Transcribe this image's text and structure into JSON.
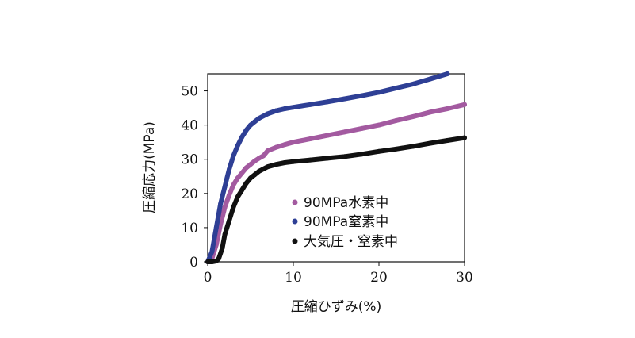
{
  "chart_data": {
    "type": "scatter",
    "xlabel": "圧縮ひずみ(%)",
    "ylabel": "圧縮応力(MPa)",
    "xlim": [
      0,
      30
    ],
    "ylim": [
      0,
      55
    ],
    "xticks": [
      "0",
      "10",
      "20",
      "30"
    ],
    "yticks": [
      "0",
      "10",
      "20",
      "30",
      "40",
      "50"
    ],
    "legend_position": "bottom-right-inside",
    "grid": false,
    "series": [
      {
        "name": "90MPa水素中",
        "color": "#a35aa0",
        "points": [
          [
            0,
            0
          ],
          [
            0.5,
            1
          ],
          [
            1,
            5
          ],
          [
            1.5,
            11
          ],
          [
            2,
            16
          ],
          [
            2.5,
            19.5
          ],
          [
            3,
            22.5
          ],
          [
            3.5,
            24.5
          ],
          [
            4,
            26
          ],
          [
            4.5,
            27.5
          ],
          [
            5,
            28.5
          ],
          [
            5.5,
            29.5
          ],
          [
            6,
            30.3
          ],
          [
            6.5,
            31
          ],
          [
            7,
            32.5
          ],
          [
            8,
            33.5
          ],
          [
            9,
            34.3
          ],
          [
            10,
            35
          ],
          [
            12,
            36
          ],
          [
            14,
            37
          ],
          [
            16,
            38
          ],
          [
            18,
            39
          ],
          [
            20,
            40
          ],
          [
            22,
            41.3
          ],
          [
            24,
            42.5
          ],
          [
            26,
            43.8
          ],
          [
            28,
            44.8
          ],
          [
            30,
            46
          ]
        ]
      },
      {
        "name": "90MPa窒素中",
        "color": "#2e3f95",
        "points": [
          [
            0,
            0
          ],
          [
            0.5,
            3
          ],
          [
            1,
            10
          ],
          [
            1.5,
            17
          ],
          [
            2,
            22
          ],
          [
            2.5,
            27
          ],
          [
            3,
            31
          ],
          [
            3.5,
            34
          ],
          [
            4,
            36.5
          ],
          [
            4.5,
            38.5
          ],
          [
            5,
            40
          ],
          [
            5.5,
            41
          ],
          [
            6,
            42
          ],
          [
            7,
            43.3
          ],
          [
            8,
            44.2
          ],
          [
            9,
            44.8
          ],
          [
            10,
            45.2
          ],
          [
            12,
            46
          ],
          [
            14,
            46.8
          ],
          [
            16,
            47.7
          ],
          [
            18,
            48.6
          ],
          [
            20,
            49.6
          ],
          [
            22,
            50.8
          ],
          [
            24,
            52
          ],
          [
            26,
            53.5
          ],
          [
            28,
            55
          ]
        ]
      },
      {
        "name": "大気圧・窒素中",
        "color": "#111111",
        "points": [
          [
            0,
            0
          ],
          [
            0.5,
            0
          ],
          [
            1,
            0.2
          ],
          [
            1.3,
            1
          ],
          [
            1.7,
            4
          ],
          [
            2,
            8
          ],
          [
            2.5,
            12
          ],
          [
            3,
            16
          ],
          [
            3.5,
            19
          ],
          [
            4,
            21
          ],
          [
            4.5,
            23
          ],
          [
            5,
            24.5
          ],
          [
            5.5,
            25.5
          ],
          [
            6,
            26.5
          ],
          [
            7,
            27.8
          ],
          [
            8,
            28.5
          ],
          [
            9,
            29
          ],
          [
            10,
            29.3
          ],
          [
            12,
            29.8
          ],
          [
            14,
            30.3
          ],
          [
            16,
            30.8
          ],
          [
            18,
            31.5
          ],
          [
            20,
            32.3
          ],
          [
            22,
            33
          ],
          [
            24,
            33.8
          ],
          [
            26,
            34.7
          ],
          [
            28,
            35.5
          ],
          [
            30,
            36.3
          ]
        ]
      }
    ]
  }
}
